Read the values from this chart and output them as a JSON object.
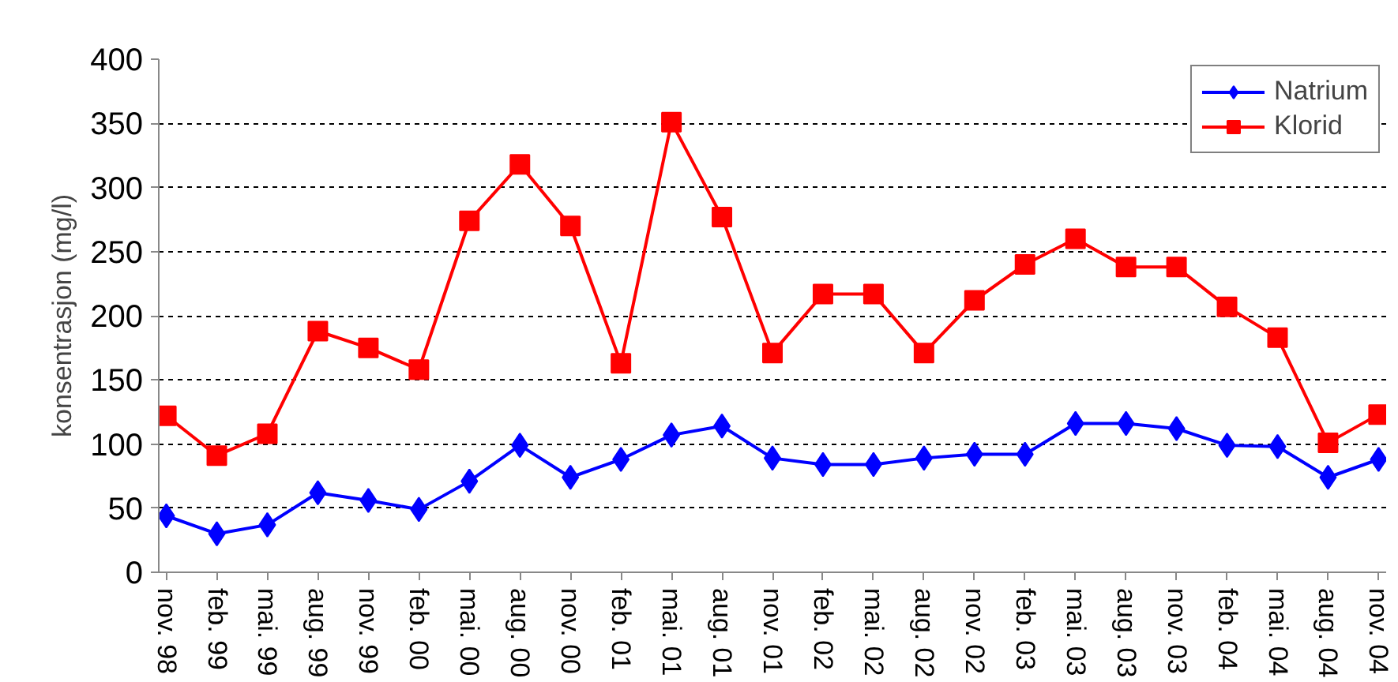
{
  "chart_data": {
    "type": "line",
    "ylabel": "konsentrasjon (mg/l)",
    "categories": [
      "nov. 98",
      "feb. 99",
      "mai. 99",
      "aug. 99",
      "nov. 99",
      "feb. 00",
      "mai. 00",
      "aug. 00",
      "nov. 00",
      "feb. 01",
      "mai. 01",
      "aug. 01",
      "nov. 01",
      "feb. 02",
      "mai. 02",
      "aug. 02",
      "nov. 02",
      "feb. 03",
      "mai. 03",
      "aug. 03",
      "nov. 03",
      "feb. 04",
      "mai. 04",
      "aug. 04",
      "nov. 04"
    ],
    "series": [
      {
        "name": "Natrium",
        "color": "#0000ff",
        "marker": "diamond",
        "values": [
          44,
          30,
          37,
          62,
          56,
          49,
          71,
          99,
          74,
          88,
          107,
          114,
          89,
          84,
          84,
          89,
          92,
          92,
          116,
          116,
          112,
          99,
          98,
          74,
          88
        ]
      },
      {
        "name": "Klorid",
        "color": "#ff0000",
        "marker": "square",
        "values": [
          122,
          91,
          108,
          188,
          175,
          158,
          274,
          318,
          270,
          163,
          351,
          277,
          171,
          217,
          217,
          171,
          212,
          240,
          260,
          238,
          238,
          207,
          183,
          101,
          123
        ]
      }
    ],
    "ylim": [
      0,
      400
    ],
    "yticks": [
      0,
      50,
      100,
      150,
      200,
      250,
      300,
      350,
      400
    ],
    "grid": "y",
    "legend": "top right",
    "line_style": "solid"
  }
}
